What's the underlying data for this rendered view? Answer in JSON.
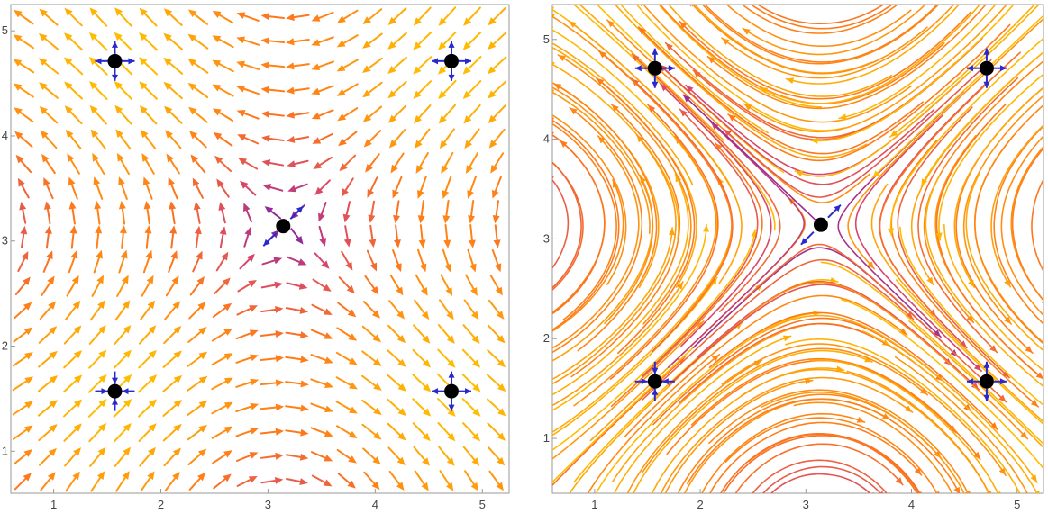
{
  "chart_data": [
    {
      "type": "vector_field",
      "style": "arrows",
      "xlim": [
        0.6,
        5.25
      ],
      "ylim": [
        0.6,
        5.25
      ],
      "xticks": [
        1,
        2,
        3,
        4,
        5
      ],
      "yticks": [
        1,
        2,
        3,
        4,
        5
      ],
      "tick_labels_x": [
        "1",
        "2",
        "3",
        "4",
        "5"
      ],
      "tick_labels_y": [
        "1",
        "2",
        "3",
        "4",
        "5"
      ],
      "field": {
        "u": "sin(y)",
        "v": "sin(x)"
      },
      "grid_points": 20,
      "color_scale": [
        "#6a1fb0",
        "#d8456b",
        "#ff7a1a",
        "#ffbf00"
      ],
      "equilibria": [
        {
          "x": 1.571,
          "y": 1.571,
          "type": "sink"
        },
        {
          "x": 4.712,
          "y": 1.571,
          "type": "saddle"
        },
        {
          "x": 1.571,
          "y": 4.712,
          "type": "saddle"
        },
        {
          "x": 4.712,
          "y": 4.712,
          "type": "source"
        },
        {
          "x": 3.142,
          "y": 3.142,
          "type": "saddle"
        }
      ],
      "grid": false,
      "legend": "none"
    },
    {
      "type": "stream_plot",
      "style": "streamlines",
      "xlim": [
        0.6,
        5.25
      ],
      "ylim": [
        0.45,
        5.35
      ],
      "xticks": [
        1,
        2,
        3,
        4,
        5
      ],
      "yticks": [
        1,
        2,
        3,
        4,
        5
      ],
      "tick_labels_x": [
        "1",
        "2",
        "3",
        "4",
        "5"
      ],
      "tick_labels_y": [
        "1",
        "2",
        "3",
        "4",
        "5"
      ],
      "field": {
        "u": "sin(y)",
        "v": "sin(x)"
      },
      "color_scale": [
        "#6a1fb0",
        "#d8456b",
        "#ff7a1a",
        "#ffbf00"
      ],
      "equilibria": [
        {
          "x": 1.571,
          "y": 1.571,
          "type": "sink"
        },
        {
          "x": 4.712,
          "y": 1.571,
          "type": "saddle"
        },
        {
          "x": 1.571,
          "y": 4.712,
          "type": "saddle"
        },
        {
          "x": 4.712,
          "y": 4.712,
          "type": "source"
        },
        {
          "x": 3.142,
          "y": 3.142,
          "type": "saddle"
        }
      ],
      "grid": false,
      "legend": "none"
    }
  ]
}
